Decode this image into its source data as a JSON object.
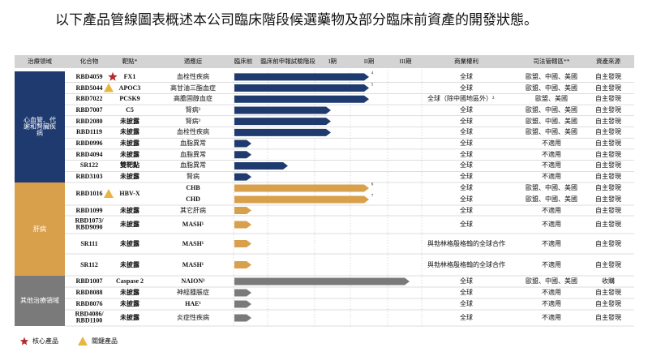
{
  "header": {
    "title": "以下產品管線圖表概述本公司臨床階段候選藥物及部分臨床前資產的開發狀態。"
  },
  "table": {
    "columns": [
      "治療領域",
      "化合物",
      "靶點*",
      "適應症",
      "臨床前",
      "臨床前申報試驗階段",
      "I期",
      "II期",
      "III期",
      "商業權利",
      "司法管轄區**",
      "資產來源"
    ],
    "groups": [
      {
        "label": "心血管、代謝和腎臟疾病",
        "color": "#1f3a6e",
        "rows": [
          {
            "compound": "RBD4059",
            "marker": "star",
            "target": "FX1",
            "lines": [
              {
                "indication": "血栓性疾病",
                "note": "4",
                "rights": "全球",
                "jurisdiction": "歐盟、中國、美國",
                "source": "自主發現"
              }
            ]
          },
          {
            "compound": "RBD5044",
            "marker": "triangle",
            "target": "APOC3",
            "lines": [
              {
                "indication": "高甘油三酯血症",
                "note": "5",
                "rights": "全球",
                "jurisdiction": "歐盟、中國、美國",
                "source": "自主發現"
              }
            ]
          },
          {
            "compound": "RBD7022",
            "target": "PCSK9",
            "lines": [
              {
                "indication": "高膽固醇血症",
                "rights": "全球（除中國地區外）²",
                "jurisdiction": "歐盟、美國",
                "source": "自主發現"
              }
            ]
          },
          {
            "compound": "RBD7007",
            "target": "C5",
            "lines": [
              {
                "indication": "腎病³",
                "rights": "全球",
                "jurisdiction": "歐盟、中國、美國",
                "source": "自主發現"
              }
            ]
          },
          {
            "compound": "RBD2080",
            "target": "未披露",
            "lines": [
              {
                "indication": "腎病³",
                "rights": "全球",
                "jurisdiction": "歐盟、中國、美國",
                "source": "自主發現"
              }
            ]
          },
          {
            "compound": "RBD1119",
            "target": "未披露",
            "lines": [
              {
                "indication": "血栓性疾病",
                "rights": "全球",
                "jurisdiction": "歐盟、中國、美國",
                "source": "自主發現"
              }
            ]
          },
          {
            "compound": "RBD0996",
            "target": "未披露",
            "lines": [
              {
                "indication": "血脂異常",
                "rights": "全球",
                "jurisdiction": "不適用",
                "source": "自主發現"
              }
            ]
          },
          {
            "compound": "RBD4094",
            "target": "未披露",
            "lines": [
              {
                "indication": "血脂異常",
                "rights": "全球",
                "jurisdiction": "不適用",
                "source": "自主發現"
              }
            ]
          },
          {
            "compound": "SR122",
            "target": "雙靶點",
            "lines": [
              {
                "indication": "血脂異常",
                "rights": "全球",
                "jurisdiction": "不適用",
                "source": "自主發現"
              }
            ]
          },
          {
            "compound": "RBD3103",
            "target": "未披露",
            "lines": [
              {
                "indication": "腎病",
                "rights": "全球",
                "jurisdiction": "不適用",
                "source": "自主發現"
              }
            ]
          }
        ]
      },
      {
        "label": "肝病",
        "color": "#d9a04c",
        "rows": [
          {
            "compound": "RBD1016",
            "marker": "triangle",
            "target": "HBV-X",
            "lines": [
              {
                "indication": "CHB",
                "note": "6",
                "rights": "全球",
                "jurisdiction": "歐盟、中國、美國",
                "source": "自主發現"
              },
              {
                "indication": "CHD",
                "note": "7",
                "rights": "全球",
                "jurisdiction": "歐盟、中國、美國",
                "source": "自主發現"
              }
            ]
          },
          {
            "compound": "RBD1099",
            "target": "未披露",
            "lines": [
              {
                "indication": "其它肝病",
                "rights": "全球",
                "jurisdiction": "不適用",
                "source": "自主發現"
              }
            ]
          },
          {
            "compound": "RBD1073/ RBD9090",
            "target": "未披露",
            "lines": [
              {
                "indication": "MASH¹",
                "rights": "全球",
                "jurisdiction": "不適用",
                "source": "自主發現"
              }
            ]
          },
          {
            "compound": "SR111",
            "target": "未披露",
            "lines": [
              {
                "indication": "MASH¹",
                "rights": "與勃林格殷格翰的全球合作",
                "jurisdiction": "不適用",
                "source": "自主發現"
              }
            ]
          },
          {
            "compound": "SR112",
            "target": "未披露",
            "lines": [
              {
                "indication": "MASH¹",
                "rights": "與勃林格殷格翰的全球合作",
                "jurisdiction": "不適用",
                "source": "自主發現"
              }
            ]
          }
        ]
      },
      {
        "label": "其他治療領域",
        "color": "#7a7a7a",
        "rows": [
          {
            "compound": "RBD1007",
            "target": "Caspase 2",
            "lines": [
              {
                "indication": "NAION¹",
                "rights": "全球",
                "jurisdiction": "歐盟、中國、美國",
                "source": "收購"
              }
            ]
          },
          {
            "compound": "RBD8088",
            "target": "未披露",
            "lines": [
              {
                "indication": "神經腫脹症",
                "rights": "全球",
                "jurisdiction": "不適用",
                "source": "自主發現"
              }
            ]
          },
          {
            "compound": "RBD8076",
            "target": "未披露",
            "lines": [
              {
                "indication": "HAE¹",
                "rights": "全球",
                "jurisdiction": "不適用",
                "source": "自主發現"
              }
            ]
          },
          {
            "compound": "RBD4086/ RBD1100",
            "target": "未披露",
            "lines": [
              {
                "indication": "炎症性疾病",
                "rights": "全球",
                "jurisdiction": "不適用",
                "source": "自主發現"
              }
            ]
          }
        ]
      }
    ]
  },
  "legend": {
    "star": "核心產品",
    "triangle": "關鍵產品"
  }
}
